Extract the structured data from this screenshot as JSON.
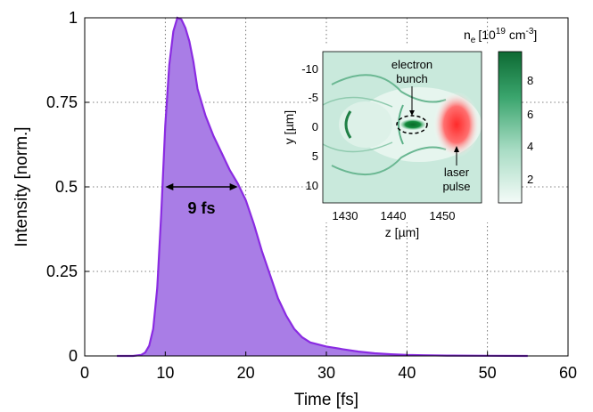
{
  "chart_data": [
    {
      "type": "area",
      "xlabel": "Time [fs]",
      "ylabel": "Intensity [norm.]",
      "xlim": [
        0,
        60
      ],
      "ylim": [
        0,
        1
      ],
      "xticks": [
        "0",
        "10",
        "20",
        "30",
        "40",
        "50",
        "60"
      ],
      "yticks": [
        "0",
        "0.25",
        "0.5",
        "0.75",
        "1"
      ],
      "grid": true,
      "fill_color": "#a97de6",
      "line_color": "#8a2be2",
      "x": [
        4,
        6,
        7,
        7.5,
        8,
        8.5,
        9,
        9.5,
        10,
        10.5,
        11,
        11.5,
        12,
        12.5,
        13,
        13.5,
        14,
        15,
        16,
        17,
        18,
        19,
        20,
        21,
        22,
        23,
        24,
        25,
        26,
        27,
        28,
        30,
        32,
        34,
        36,
        38,
        40,
        42,
        45,
        50,
        55
      ],
      "y": [
        0,
        0,
        0.003,
        0.01,
        0.03,
        0.08,
        0.2,
        0.42,
        0.68,
        0.86,
        0.96,
        1.0,
        0.995,
        0.97,
        0.93,
        0.87,
        0.79,
        0.71,
        0.65,
        0.6,
        0.55,
        0.51,
        0.46,
        0.39,
        0.31,
        0.24,
        0.17,
        0.12,
        0.08,
        0.055,
        0.04,
        0.028,
        0.02,
        0.013,
        0.008,
        0.005,
        0.003,
        0.002,
        0.001,
        0.0005,
        0
      ],
      "fwhm": {
        "x1": 10,
        "x2": 19,
        "y": 0.5,
        "label": "9 fs"
      }
    },
    {
      "type": "heatmap",
      "xlabel": "z [µm]",
      "ylabel": "y [µm]",
      "xticks": [
        "1430",
        "1440",
        "1450"
      ],
      "yticks": [
        "-10",
        "-5",
        "0",
        "5",
        "10"
      ],
      "colorbar_label_base": "n",
      "colorbar_label_sub": "e",
      "colorbar_label_unit": "[10",
      "colorbar_label_exp": "19",
      "colorbar_label_tail": " cm",
      "colorbar_label_exp2": "-3",
      "colorbar_label_close": "]",
      "colorbar_ticks": [
        "2",
        "4",
        "6",
        "8"
      ],
      "annotations": [
        {
          "text": "electron",
          "id": "electron-1"
        },
        {
          "text": "bunch",
          "id": "electron-2"
        },
        {
          "text": "laser",
          "id": "laser-1"
        },
        {
          "text": "pulse",
          "id": "laser-2"
        }
      ]
    }
  ]
}
